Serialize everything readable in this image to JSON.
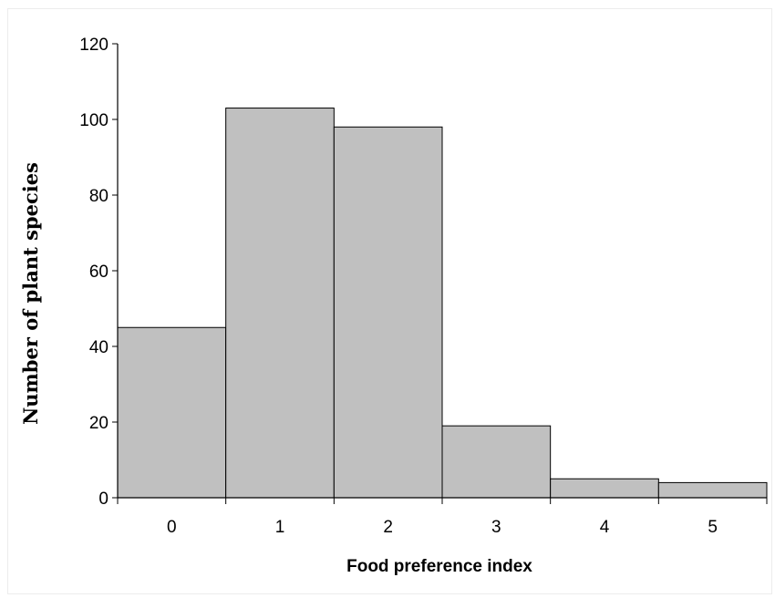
{
  "chart_data": {
    "type": "bar",
    "categories": [
      "0",
      "1",
      "2",
      "3",
      "4",
      "5"
    ],
    "values": [
      45,
      103,
      98,
      19,
      5,
      4
    ],
    "xlabel": "Food preference index",
    "ylabel": "Number of plant species",
    "ylim": [
      0,
      120
    ],
    "yticks": [
      "0",
      "20",
      "40",
      "60",
      "80",
      "100",
      "120"
    ],
    "grid": false,
    "legend": "none",
    "bar_color": "#c0c0c0",
    "edge_color": "#000000"
  }
}
